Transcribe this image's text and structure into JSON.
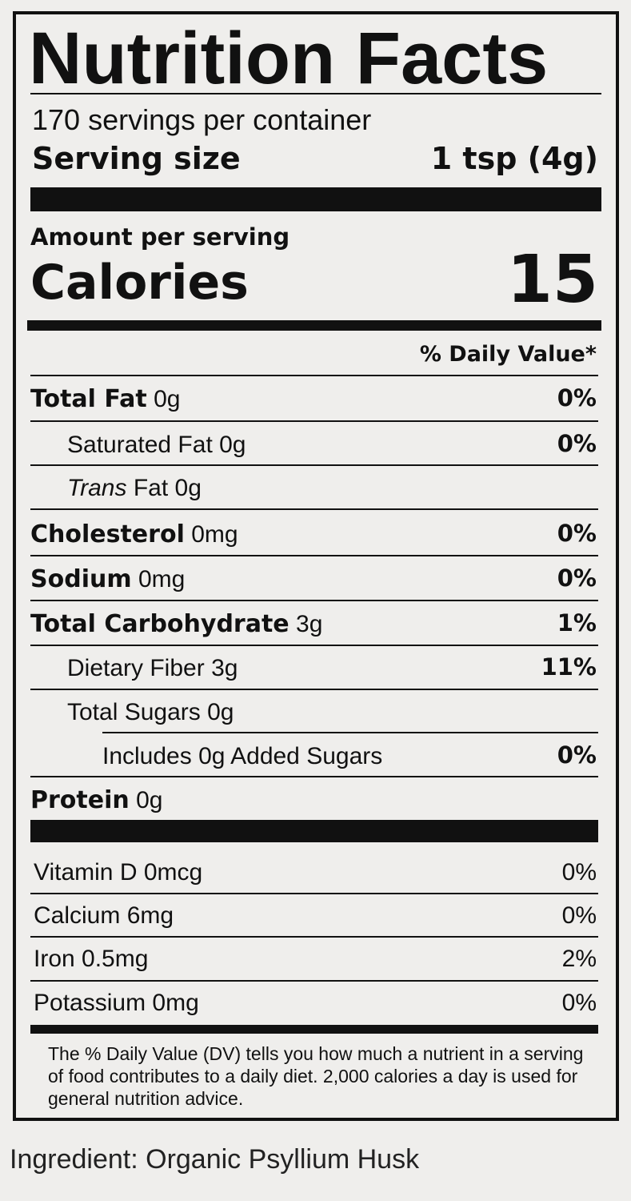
{
  "title": "Nutrition Facts",
  "servings_per_container": "170 servings per container",
  "serving_size_label": "Serving size",
  "serving_size_value": "1 tsp (4g)",
  "amount_per_serving": "Amount per serving",
  "calories_label": "Calories",
  "calories_value": "15",
  "daily_value_header": "% Daily Value*",
  "nutrients": [
    {
      "name": "Total Fat",
      "amount": "0g",
      "dv": "0%"
    },
    {
      "name": "Saturated Fat",
      "amount": "0g",
      "dv": "0%"
    },
    {
      "name": "Trans",
      "name_rest": "Fat",
      "amount": "0g",
      "dv": ""
    },
    {
      "name": "Cholesterol",
      "amount": "0mg",
      "dv": "0%"
    },
    {
      "name": "Sodium",
      "amount": "0mg",
      "dv": "0%"
    },
    {
      "name": "Total Carbohydrate",
      "amount": "3g",
      "dv": "1%"
    },
    {
      "name": "Dietary Fiber",
      "amount": "3g",
      "dv": "11%"
    },
    {
      "name": "Total Sugars",
      "amount": "0g",
      "dv": ""
    },
    {
      "name": "Includes 0g Added Sugars",
      "amount": "",
      "dv": "0%"
    },
    {
      "name": "Protein",
      "amount": "0g",
      "dv": ""
    }
  ],
  "vitamins": [
    {
      "name": "Vitamin D 0mcg",
      "dv": "0%"
    },
    {
      "name": "Calcium 6mg",
      "dv": "0%"
    },
    {
      "name": "Iron 0.5mg",
      "dv": "2%"
    },
    {
      "name": "Potassium 0mg",
      "dv": "0%"
    }
  ],
  "footnote": "The % Daily Value (DV) tells you how much a nutrient in a serving of food contributes to a daily diet. 2,000 calories a day is used for general nutrition advice.",
  "ingredient": "Ingredient: Organic Psyllium Husk"
}
